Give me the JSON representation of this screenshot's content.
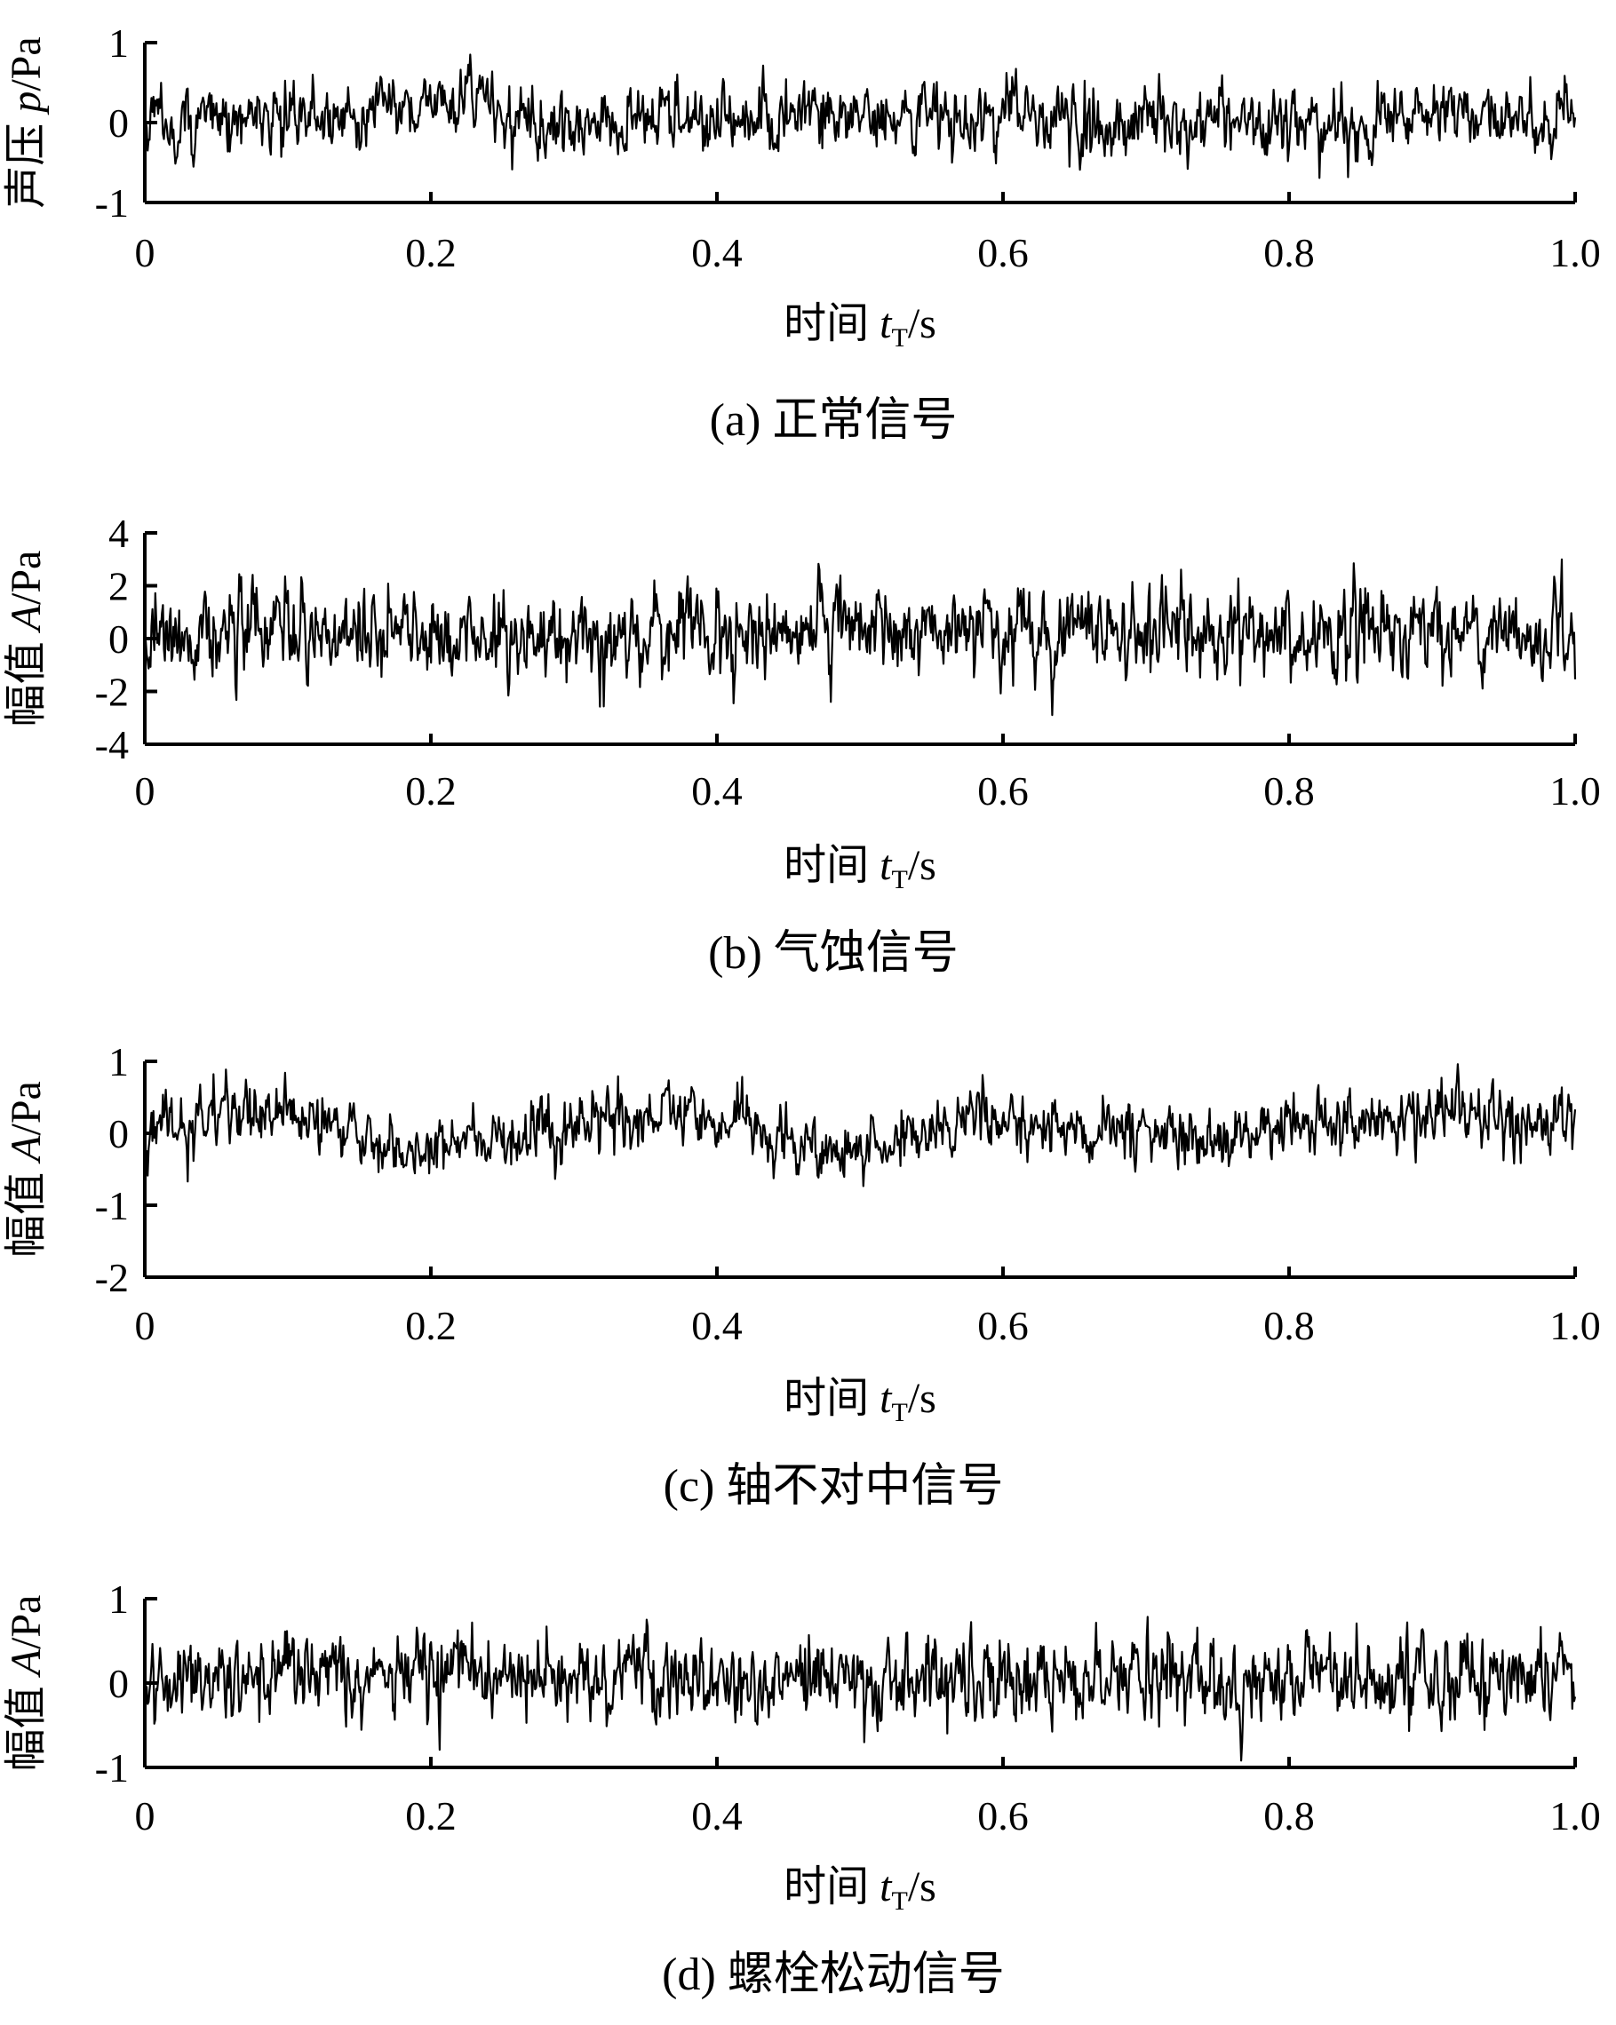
{
  "figure": {
    "captions": [
      "(a) 正常信号",
      "(b) 气蚀信号",
      "(c) 轴不对中信号",
      "(d) 螺栓松动信号"
    ]
  },
  "chart_data": [
    {
      "type": "line",
      "caption": "(a) 正常信号",
      "series_description": "normal acoustic signal, dense noise around 0",
      "ylabel": {
        "prefix": "声压 ",
        "italic": "p",
        "suffix": "/Pa"
      },
      "xlabel": {
        "prefix": "时间 ",
        "italic": "t",
        "sub": "T",
        "suffix": "/s"
      },
      "xlim": [
        0,
        1.0
      ],
      "ylim": [
        -1,
        1
      ],
      "xticks": [
        "0",
        "0.2",
        "0.4",
        "0.6",
        "0.8",
        "1.0"
      ],
      "yticks": [
        "1",
        "0",
        "-1"
      ],
      "signal": {
        "amplitude_std": 0.22,
        "peak": 0.85,
        "samples": 1500,
        "drift": [
          [
            0,
            0
          ],
          [
            0.1,
            0.05
          ],
          [
            0.2,
            0.25
          ],
          [
            0.25,
            0.2
          ],
          [
            0.28,
            -0.15
          ],
          [
            0.35,
            0.0
          ],
          [
            0.5,
            0.05
          ],
          [
            0.7,
            0.0
          ],
          [
            0.85,
            0.0
          ],
          [
            0.9,
            0.15
          ],
          [
            1.0,
            0.05
          ]
        ]
      }
    },
    {
      "type": "line",
      "caption": "(b) 气蚀信号",
      "ylabel": {
        "prefix": "幅值 ",
        "italic": "A",
        "suffix": "/Pa"
      },
      "xlabel": {
        "prefix": "时间 ",
        "italic": "t",
        "sub": "T",
        "suffix": "/s"
      },
      "xlim": [
        0,
        1.0
      ],
      "ylim": [
        -4,
        4
      ],
      "xticks": [
        "0",
        "0.2",
        "0.4",
        "0.6",
        "0.8",
        "1.0"
      ],
      "yticks": [
        "4",
        "2",
        "0",
        "-2",
        "-4"
      ],
      "signal": {
        "amplitude_std": 0.85,
        "peak": 3.0,
        "samples": 1500,
        "drift": [
          [
            0,
            0.3
          ],
          [
            0.3,
            0.0
          ],
          [
            0.5,
            0.4
          ],
          [
            0.7,
            0.3
          ],
          [
            1.0,
            0.2
          ]
        ]
      }
    },
    {
      "type": "line",
      "caption": "(c) 轴不对中信号",
      "ylabel": {
        "prefix": "幅值 ",
        "italic": "A",
        "suffix": "/Pa"
      },
      "xlabel": {
        "prefix": "时间 ",
        "italic": "t",
        "sub": "T",
        "suffix": "/s"
      },
      "xlim": [
        0,
        1.0
      ],
      "ylim": [
        -2,
        1
      ],
      "xticks": [
        "0",
        "0.2",
        "0.4",
        "0.6",
        "0.8",
        "1.0"
      ],
      "yticks": [
        "1",
        "0",
        "-1",
        "-2"
      ],
      "signal": {
        "amplitude_std": 0.22,
        "peak": 1.0,
        "samples": 1500,
        "drift": [
          [
            0,
            0.15
          ],
          [
            0.1,
            0.25
          ],
          [
            0.2,
            -0.25
          ],
          [
            0.3,
            0.1
          ],
          [
            0.38,
            0.35
          ],
          [
            0.42,
            0.0
          ],
          [
            0.5,
            -0.2
          ],
          [
            0.58,
            0.25
          ],
          [
            0.7,
            -0.1
          ],
          [
            0.8,
            0.05
          ],
          [
            0.9,
            0.3
          ],
          [
            1.0,
            0.2
          ]
        ]
      }
    },
    {
      "type": "line",
      "caption": "(d) 螺栓松动信号",
      "ylabel": {
        "prefix": "幅值 ",
        "italic": "A",
        "suffix": "/Pa"
      },
      "xlabel": {
        "prefix": "时间 ",
        "italic": "t",
        "sub": "T",
        "suffix": "/s"
      },
      "xlim": [
        0,
        1.0
      ],
      "ylim": [
        -1,
        1
      ],
      "xticks": [
        "0",
        "0.2",
        "0.4",
        "0.6",
        "0.8",
        "1.0"
      ],
      "yticks": [
        "1",
        "0",
        "-1"
      ],
      "signal": {
        "amplitude_std": 0.25,
        "peak": 0.95,
        "samples": 1500,
        "drift": [
          [
            0,
            0.1
          ],
          [
            0.5,
            0.05
          ],
          [
            1.0,
            0.05
          ]
        ]
      }
    }
  ]
}
